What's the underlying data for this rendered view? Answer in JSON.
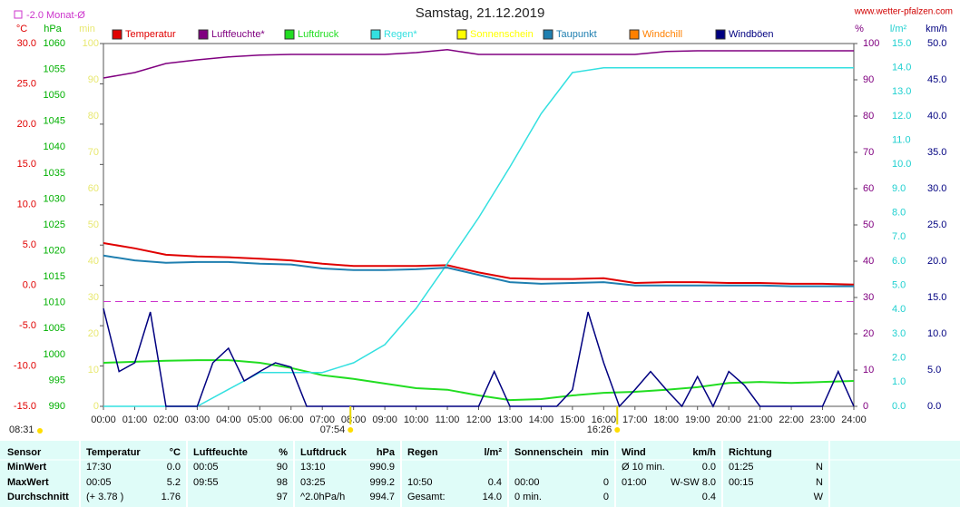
{
  "chart_data": {
    "type": "line",
    "title": "Samstag, 21.12.2019",
    "source": "www.wetter-pfalzen.com",
    "reference_line": {
      "label": "-2.0 Monat-Ø",
      "value": -2.0,
      "axis": "°C",
      "color": "#cc33cc"
    },
    "sun_annotations": [
      {
        "value": 7.9,
        "label": "07:54"
      },
      {
        "value": 16.4333,
        "label": "16:26"
      }
    ],
    "day_length": "08:31",
    "x": [
      0,
      1,
      2,
      3,
      4,
      5,
      6,
      7,
      8,
      9,
      10,
      11,
      12,
      13,
      14,
      15,
      16,
      17,
      18,
      19,
      20,
      21,
      22,
      23,
      24
    ],
    "xlim": [
      0,
      24
    ],
    "xticks": [
      {
        "value": 0,
        "label": "00:00"
      },
      {
        "value": 1,
        "label": "01:00"
      },
      {
        "value": 2,
        "label": "02:00"
      },
      {
        "value": 3,
        "label": "03:00"
      },
      {
        "value": 4,
        "label": "04:00"
      },
      {
        "value": 5,
        "label": "05:00"
      },
      {
        "value": 6,
        "label": "06:00"
      },
      {
        "value": 7,
        "label": "07:00"
      },
      {
        "value": 8,
        "label": "08:00"
      },
      {
        "value": 9,
        "label": "09:00"
      },
      {
        "value": 10,
        "label": "10:00"
      },
      {
        "value": 11,
        "label": "11:00"
      },
      {
        "value": 12,
        "label": "12:00"
      },
      {
        "value": 13,
        "label": "13:00"
      },
      {
        "value": 14,
        "label": "14:00"
      },
      {
        "value": 15,
        "label": "15:00"
      },
      {
        "value": 16,
        "label": "16:00"
      },
      {
        "value": 17,
        "label": "17:00"
      },
      {
        "value": 18,
        "label": "18:00"
      },
      {
        "value": 19,
        "label": "19:00"
      },
      {
        "value": 20,
        "label": "20:00"
      },
      {
        "value": 21,
        "label": "21:00"
      },
      {
        "value": 22,
        "label": "22:00"
      },
      {
        "value": 23,
        "label": "23:00"
      },
      {
        "value": 24,
        "label": "24:00"
      }
    ],
    "axes": [
      {
        "label": "°C",
        "lim": [
          -15,
          30
        ],
        "color": "#e00000",
        "ticks": [
          {
            "value": -15,
            "label": "-15.0"
          },
          {
            "value": -10,
            "label": "-10.0"
          },
          {
            "value": -5,
            "label": "-5.0"
          },
          {
            "value": 0,
            "label": "0.0"
          },
          {
            "value": 5,
            "label": "5.0"
          },
          {
            "value": 10,
            "label": "10.0"
          },
          {
            "value": 15,
            "label": "15.0"
          },
          {
            "value": 20,
            "label": "20.0"
          },
          {
            "value": 25,
            "label": "25.0"
          },
          {
            "value": 30,
            "label": "30.0"
          }
        ]
      },
      {
        "label": "hPa",
        "lim": [
          990,
          1060
        ],
        "color": "#00b000",
        "ticks": [
          990,
          995,
          1000,
          1005,
          1010,
          1015,
          1020,
          1025,
          1030,
          1035,
          1040,
          1045,
          1050,
          1055,
          1060
        ]
      },
      {
        "label": "min",
        "lim": [
          0,
          100
        ],
        "color": "#e8e870",
        "ticks": [
          0,
          10,
          20,
          30,
          40,
          50,
          60,
          70,
          80,
          90,
          100
        ]
      },
      {
        "label": "%",
        "lim": [
          0,
          100
        ],
        "color": "#800080",
        "ticks": [
          0,
          10,
          20,
          30,
          40,
          50,
          60,
          70,
          80,
          90,
          100
        ]
      },
      {
        "label": "l/m²",
        "lim": [
          0,
          15
        ],
        "color": "#20d0d0",
        "ticks": [
          {
            "value": 0,
            "label": "0.0"
          },
          {
            "value": 1,
            "label": "1.0"
          },
          {
            "value": 2,
            "label": "2.0"
          },
          {
            "value": 3,
            "label": "3.0"
          },
          {
            "value": 4,
            "label": "4.0"
          },
          {
            "value": 5,
            "label": "5.0"
          },
          {
            "value": 6,
            "label": "6.0"
          },
          {
            "value": 7,
            "label": "7.0"
          },
          {
            "value": 8,
            "label": "8.0"
          },
          {
            "value": 9,
            "label": "9.0"
          },
          {
            "value": 10,
            "label": "10.0"
          },
          {
            "value": 11,
            "label": "11.0"
          },
          {
            "value": 12,
            "label": "12.0"
          },
          {
            "value": 13,
            "label": "13.0"
          },
          {
            "value": 14,
            "label": "14.0"
          },
          {
            "value": 15,
            "label": "15.0"
          }
        ]
      },
      {
        "label": "km/h",
        "lim": [
          0,
          50
        ],
        "color": "#000080",
        "ticks": [
          {
            "value": 0,
            "label": "0.0"
          },
          {
            "value": 5,
            "label": "5.0"
          },
          {
            "value": 10,
            "label": "10.0"
          },
          {
            "value": 15,
            "label": "15.0"
          },
          {
            "value": 20,
            "label": "20.0"
          },
          {
            "value": 25,
            "label": "25.0"
          },
          {
            "value": 30,
            "label": "30.0"
          },
          {
            "value": 35,
            "label": "35.0"
          },
          {
            "value": 40,
            "label": "40.0"
          },
          {
            "value": 45,
            "label": "45.0"
          },
          {
            "value": 50,
            "label": "50.0"
          }
        ]
      }
    ],
    "series": [
      {
        "name": "Temperatur",
        "color": "#e00000",
        "axis": "°C",
        "values": [
          5.25,
          4.6,
          3.8,
          3.6,
          3.5,
          3.3,
          3.1,
          2.7,
          2.4,
          2.4,
          2.4,
          2.5,
          1.6,
          0.9,
          0.8,
          0.8,
          0.9,
          0.3,
          0.4,
          0.4,
          0.3,
          0.3,
          0.2,
          0.2,
          0.1
        ]
      },
      {
        "name": "Luftfeuchte*",
        "color": "#800080",
        "axis": "%",
        "values": [
          90.5,
          92,
          94.5,
          95.5,
          96.3,
          96.8,
          97,
          97,
          97,
          97,
          97.5,
          98.3,
          97,
          97,
          97,
          97,
          97,
          97,
          97.8,
          98,
          98,
          98,
          98,
          98,
          98
        ]
      },
      {
        "name": "Luftdruck",
        "color": "#22dd22",
        "axis": "hPa",
        "values": [
          998.4,
          998.6,
          998.8,
          998.9,
          998.9,
          998.4,
          997.4,
          996.0,
          995.3,
          994.4,
          993.5,
          993.2,
          992.1,
          991.2,
          991.4,
          992.1,
          992.6,
          992.8,
          993.2,
          993.7,
          994.5,
          994.7,
          994.5,
          994.7,
          994.9
        ]
      },
      {
        "name": "Regen*",
        "color": "#33e0e0",
        "axis": "l/m²",
        "values": [
          0,
          0,
          0,
          0,
          0.7,
          1.4,
          1.4,
          1.4,
          1.8,
          2.55,
          4.05,
          5.9,
          7.8,
          9.9,
          12.1,
          13.8,
          14.0,
          14.0,
          14.0,
          14.0,
          14.0,
          14.0,
          14.0,
          14.0,
          14.0
        ]
      },
      {
        "name": "Sonnenschein",
        "color": "#ffff00",
        "axis": "min"
      },
      {
        "name": "Taupunkt",
        "color": "#1f7fb0",
        "axis": "°C",
        "values": [
          3.7,
          3.1,
          2.8,
          2.9,
          2.9,
          2.7,
          2.6,
          2.1,
          1.9,
          1.9,
          2.0,
          2.2,
          1.3,
          0.4,
          0.2,
          0.3,
          0.4,
          0.0,
          0.0,
          0.0,
          0.0,
          0.0,
          -0.1,
          -0.1,
          -0.1
        ]
      },
      {
        "name": "Windchill",
        "color": "#ff8000",
        "axis": "°C"
      },
      {
        "name": "Windböen",
        "color": "#000080",
        "axis": "km/h",
        "x": [
          0,
          0.5,
          1,
          1.5,
          2,
          2.5,
          3,
          3.5,
          4,
          4.5,
          5,
          5.5,
          6,
          6.5,
          7,
          7.5,
          8,
          8.5,
          9,
          9.5,
          10,
          10.5,
          11,
          11.5,
          12,
          12.5,
          13,
          13.5,
          14,
          14.5,
          15,
          15.5,
          16,
          16.5,
          17,
          17.5,
          18,
          18.5,
          19,
          19.5,
          20,
          20.5,
          21,
          21.5,
          22,
          22.5,
          23,
          23.5,
          24
        ],
        "values": [
          13.5,
          4.8,
          6,
          13,
          0,
          0,
          0,
          6,
          8,
          3.5,
          4.8,
          6,
          5.4,
          0,
          0,
          0,
          0,
          0,
          0,
          0,
          0,
          0,
          0,
          0,
          0,
          4.8,
          0,
          0,
          0,
          0,
          2.3,
          13,
          6,
          0,
          2.3,
          4.8,
          2.3,
          0,
          4.1,
          0,
          4.8,
          2.9,
          0,
          0,
          0,
          0,
          0,
          4.8,
          0
        ]
      }
    ]
  },
  "table": {
    "sensor_header": "Sensor",
    "row_labels": [
      "MinWert",
      "MaxWert",
      "Durchschnitt"
    ],
    "groups": [
      {
        "name": "Temperatur",
        "unit": "°C",
        "cells": [
          {
            "left": "17:30",
            "right": "0.0"
          },
          {
            "left": "00:05",
            "right": "5.2"
          },
          {
            "left": "(+ 3.78 )",
            "right": "1.76"
          }
        ]
      },
      {
        "name": "Luftfeuchte",
        "unit": "%",
        "cells": [
          {
            "left": "00:05",
            "right": "90"
          },
          {
            "left": "09:55",
            "right": "98"
          },
          {
            "right": "97"
          }
        ]
      },
      {
        "name": "Luftdruck",
        "unit": "hPa",
        "cells": [
          {
            "left": "13:10",
            "right": "990.9"
          },
          {
            "left": "03:25",
            "right": "999.2"
          },
          {
            "left": "^2.0hPa/h",
            "right": "994.7"
          }
        ]
      },
      {
        "name": "Regen",
        "unit": "l/m²",
        "cells": [
          null,
          {
            "left": "10:50",
            "right": "0.4"
          },
          {
            "left": "Gesamt:",
            "right": "14.0"
          }
        ]
      },
      {
        "name": "Sonnenschein",
        "unit": "min",
        "cells": [
          null,
          {
            "left": "00:00",
            "right": "0"
          },
          {
            "left": "0 min.",
            "right": "0"
          }
        ]
      },
      {
        "name": "Wind",
        "unit": "km/h",
        "cells": [
          {
            "left": "Ø 10 min.",
            "right": "0.0"
          },
          {
            "left": "01:00",
            "right": "W-SW 8.0"
          },
          {
            "right": "0.4"
          }
        ]
      },
      {
        "name": "Richtung",
        "cells": [
          {
            "left": "01:25",
            "right": "N"
          },
          {
            "left": "00:15",
            "right": "N"
          },
          {
            "right": "W"
          }
        ]
      }
    ]
  }
}
